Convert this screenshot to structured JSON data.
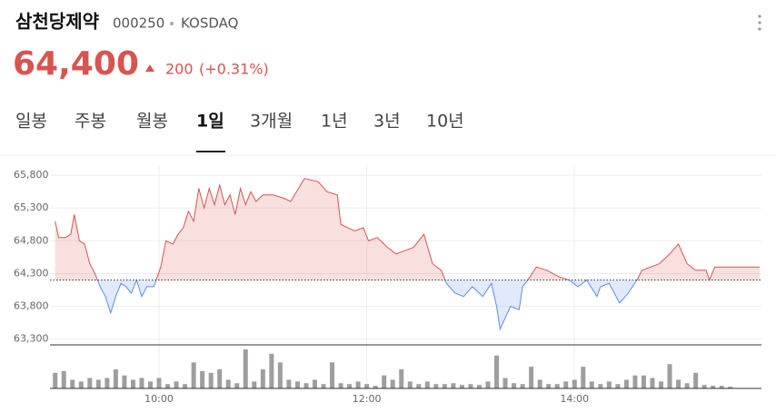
{
  "header": {
    "name": "삼천당제약",
    "code": "000250",
    "market": "KOSDAQ",
    "price": "64,400",
    "change": "200",
    "change_pct": "(+0.31%)"
  },
  "tabs": [
    "일봉",
    "주봉",
    "월봉",
    "1일",
    "3개월",
    "1년",
    "3년",
    "10년"
  ],
  "chart_data": {
    "type": "line",
    "x": [
      540,
      542,
      546,
      549,
      551,
      554,
      557,
      560,
      563,
      566,
      569,
      572,
      575,
      578,
      581,
      584,
      587,
      590,
      593,
      597,
      601,
      604,
      608,
      611,
      614,
      617,
      620,
      623,
      626,
      629,
      632,
      635,
      638,
      641,
      644,
      647,
      650,
      653,
      656,
      660,
      666,
      672,
      676,
      684,
      692,
      697,
      703,
      705,
      713,
      718,
      721,
      726,
      732,
      737,
      742,
      747,
      753,
      758,
      763,
      766,
      771,
      776,
      781,
      787,
      792,
      795,
      797,
      803,
      808,
      810,
      813,
      818,
      824,
      831,
      837,
      842,
      847,
      853,
      855,
      860,
      866,
      871,
      876,
      879,
      884,
      889,
      895,
      900,
      905,
      910,
      916,
      918,
      921,
      947
    ],
    "series": [
      {
        "color": "#d9534f",
        "values": [
          65100,
          64850,
          64850,
          64900,
          65200,
          64800,
          64750,
          64450,
          64300,
          64100,
          63950,
          63700,
          63950,
          64150,
          64100,
          64000,
          64200,
          63950,
          64100,
          64100,
          64400,
          64800,
          64750,
          64900,
          65000,
          65250,
          65100,
          65600,
          65300,
          65600,
          65350,
          65650,
          65350,
          65500,
          65200,
          65600,
          65350,
          65550,
          65400,
          65500,
          65500,
          65450,
          65400,
          65750,
          65700,
          65550,
          65500,
          65050,
          64950,
          65000,
          64800,
          64850,
          64700,
          64600,
          64650,
          64700,
          64900,
          64450,
          64350,
          64150,
          64000,
          63950,
          64100,
          63950,
          64150,
          63800,
          63450,
          63800,
          63750,
          64100,
          64200,
          64400,
          64350,
          64250,
          64200,
          64100,
          64200,
          63950,
          64100,
          64150,
          63850,
          64000,
          64200,
          64350,
          64400,
          64450,
          64600,
          64750,
          64450,
          64350,
          64350,
          64200,
          64400,
          64400
        ]
      }
    ],
    "baseline": 64200,
    "up_color": "#d9534f",
    "down_color": "#5b8def",
    "xlim": [
      537,
      948
    ],
    "xticks": [
      {
        "value": 600,
        "label": "10:00"
      },
      {
        "value": 720,
        "label": "12:00"
      },
      {
        "value": 840,
        "label": "14:00"
      }
    ],
    "ylim": [
      63240,
      65940
    ],
    "yticks": [
      {
        "value": 65800,
        "label": "65,800"
      },
      {
        "value": 65300,
        "label": "65,300"
      },
      {
        "value": 64800,
        "label": "64,800"
      },
      {
        "value": 64300,
        "label": "64,300"
      },
      {
        "value": 63800,
        "label": "63,800"
      },
      {
        "value": 63300,
        "label": "63,300"
      }
    ],
    "grid": true,
    "volume": {
      "color": "#9e9e9e",
      "vlim": [
        0,
        45
      ],
      "x": [
        540,
        545,
        550,
        555,
        560,
        565,
        570,
        575,
        580,
        585,
        590,
        595,
        600,
        605,
        610,
        615,
        620,
        625,
        630,
        635,
        640,
        645,
        650,
        655,
        660,
        665,
        670,
        675,
        680,
        685,
        690,
        695,
        700,
        705,
        710,
        715,
        720,
        725,
        730,
        735,
        740,
        745,
        750,
        755,
        760,
        765,
        770,
        775,
        780,
        785,
        790,
        795,
        800,
        805,
        810,
        815,
        820,
        825,
        830,
        835,
        840,
        845,
        850,
        855,
        860,
        865,
        870,
        875,
        880,
        885,
        890,
        895,
        900,
        905,
        910,
        915,
        920,
        925,
        930
      ],
      "values": [
        18,
        20,
        10,
        8,
        12,
        10,
        12,
        22,
        15,
        10,
        12,
        8,
        12,
        5,
        8,
        5,
        30,
        20,
        18,
        22,
        10,
        6,
        45,
        8,
        22,
        40,
        30,
        10,
        8,
        6,
        10,
        5,
        30,
        6,
        5,
        8,
        5,
        3,
        15,
        10,
        22,
        8,
        5,
        8,
        5,
        5,
        6,
        4,
        5,
        4,
        8,
        38,
        12,
        6,
        5,
        25,
        10,
        5,
        5,
        8,
        10,
        25,
        8,
        5,
        8,
        5,
        10,
        15,
        15,
        12,
        8,
        28,
        10,
        6,
        18,
        4,
        3,
        3,
        2
      ]
    }
  }
}
